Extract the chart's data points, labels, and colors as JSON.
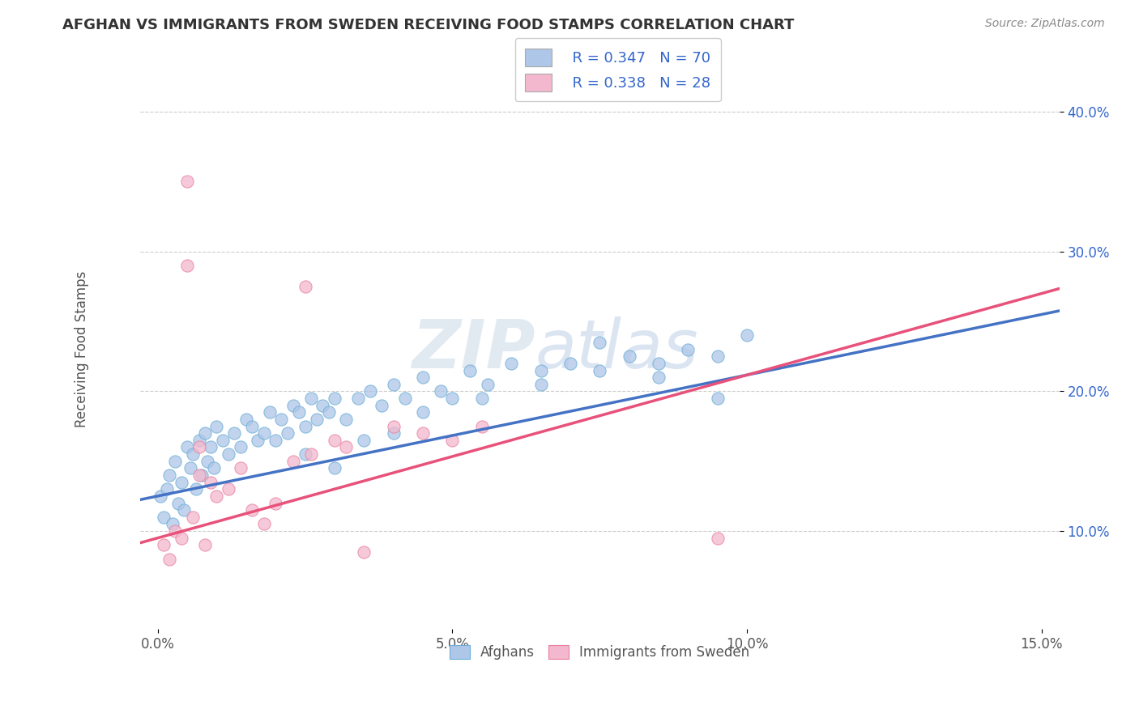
{
  "title": "AFGHAN VS IMMIGRANTS FROM SWEDEN RECEIVING FOOD STAMPS CORRELATION CHART",
  "source": "Source: ZipAtlas.com",
  "ylabel": "Receiving Food Stamps",
  "watermark_zip": "ZIP",
  "watermark_atlas": "atlas",
  "xlim": [
    -0.3,
    15.3
  ],
  "ylim": [
    3.0,
    43.0
  ],
  "xticks": [
    0.0,
    5.0,
    10.0,
    15.0
  ],
  "xtick_labels": [
    "0.0%",
    "5.0%",
    "10.0%",
    "15.0%"
  ],
  "yticks": [
    10.0,
    20.0,
    30.0,
    40.0
  ],
  "ytick_labels": [
    "10.0%",
    "20.0%",
    "30.0%",
    "40.0%"
  ],
  "afghan_color": "#aec6e8",
  "afghan_edge": "#6baed6",
  "sweden_color": "#f4b8ce",
  "sweden_edge": "#e8809e",
  "trend_blue": "#4472c4",
  "trend_pink": "#e8517a",
  "legend_text_color": "#3366cc",
  "R_afghan": 0.347,
  "N_afghan": 70,
  "R_sweden": 0.338,
  "N_sweden": 28,
  "afghan_x": [
    0.05,
    0.1,
    0.15,
    0.2,
    0.25,
    0.3,
    0.35,
    0.4,
    0.45,
    0.5,
    0.55,
    0.6,
    0.65,
    0.7,
    0.75,
    0.8,
    0.85,
    0.9,
    0.95,
    1.0,
    1.1,
    1.2,
    1.3,
    1.4,
    1.5,
    1.6,
    1.7,
    1.8,
    1.9,
    2.0,
    2.1,
    2.2,
    2.3,
    2.4,
    2.5,
    2.6,
    2.7,
    2.8,
    2.9,
    3.0,
    3.2,
    3.4,
    3.6,
    3.8,
    4.0,
    4.2,
    4.5,
    4.8,
    5.0,
    5.3,
    5.6,
    6.0,
    6.5,
    7.0,
    7.5,
    8.0,
    8.5,
    9.0,
    9.5,
    10.0,
    2.5,
    3.0,
    3.5,
    4.0,
    4.5,
    5.5,
    6.5,
    7.5,
    8.5,
    9.5
  ],
  "afghan_y": [
    12.5,
    11.0,
    13.0,
    14.0,
    10.5,
    15.0,
    12.0,
    13.5,
    11.5,
    16.0,
    14.5,
    15.5,
    13.0,
    16.5,
    14.0,
    17.0,
    15.0,
    16.0,
    14.5,
    17.5,
    16.5,
    15.5,
    17.0,
    16.0,
    18.0,
    17.5,
    16.5,
    17.0,
    18.5,
    16.5,
    18.0,
    17.0,
    19.0,
    18.5,
    17.5,
    19.5,
    18.0,
    19.0,
    18.5,
    19.5,
    18.0,
    19.5,
    20.0,
    19.0,
    20.5,
    19.5,
    21.0,
    20.0,
    19.5,
    21.5,
    20.5,
    22.0,
    21.5,
    22.0,
    23.5,
    22.5,
    21.0,
    23.0,
    22.5,
    24.0,
    15.5,
    14.5,
    16.5,
    17.0,
    18.5,
    19.5,
    20.5,
    21.5,
    22.0,
    19.5
  ],
  "sweden_x": [
    0.1,
    0.2,
    0.3,
    0.4,
    0.5,
    0.6,
    0.7,
    0.8,
    0.9,
    1.0,
    1.2,
    1.4,
    1.6,
    1.8,
    2.0,
    2.3,
    2.6,
    3.0,
    3.5,
    4.0,
    4.5,
    5.0,
    5.5,
    2.5,
    0.5,
    0.7,
    9.5,
    3.2
  ],
  "sweden_y": [
    9.0,
    8.0,
    10.0,
    9.5,
    35.0,
    11.0,
    14.0,
    9.0,
    13.5,
    12.5,
    13.0,
    14.5,
    11.5,
    10.5,
    12.0,
    15.0,
    15.5,
    16.5,
    8.5,
    17.5,
    17.0,
    16.5,
    17.5,
    27.5,
    29.0,
    16.0,
    9.5,
    16.0
  ],
  "trend_afghan_x0": 0.0,
  "trend_afghan_y0": 12.5,
  "trend_afghan_x1": 15.0,
  "trend_afghan_y1": 25.5,
  "trend_sweden_x0": 0.0,
  "trend_sweden_y0": 9.5,
  "trend_sweden_x1": 15.0,
  "trend_sweden_y1": 27.0
}
